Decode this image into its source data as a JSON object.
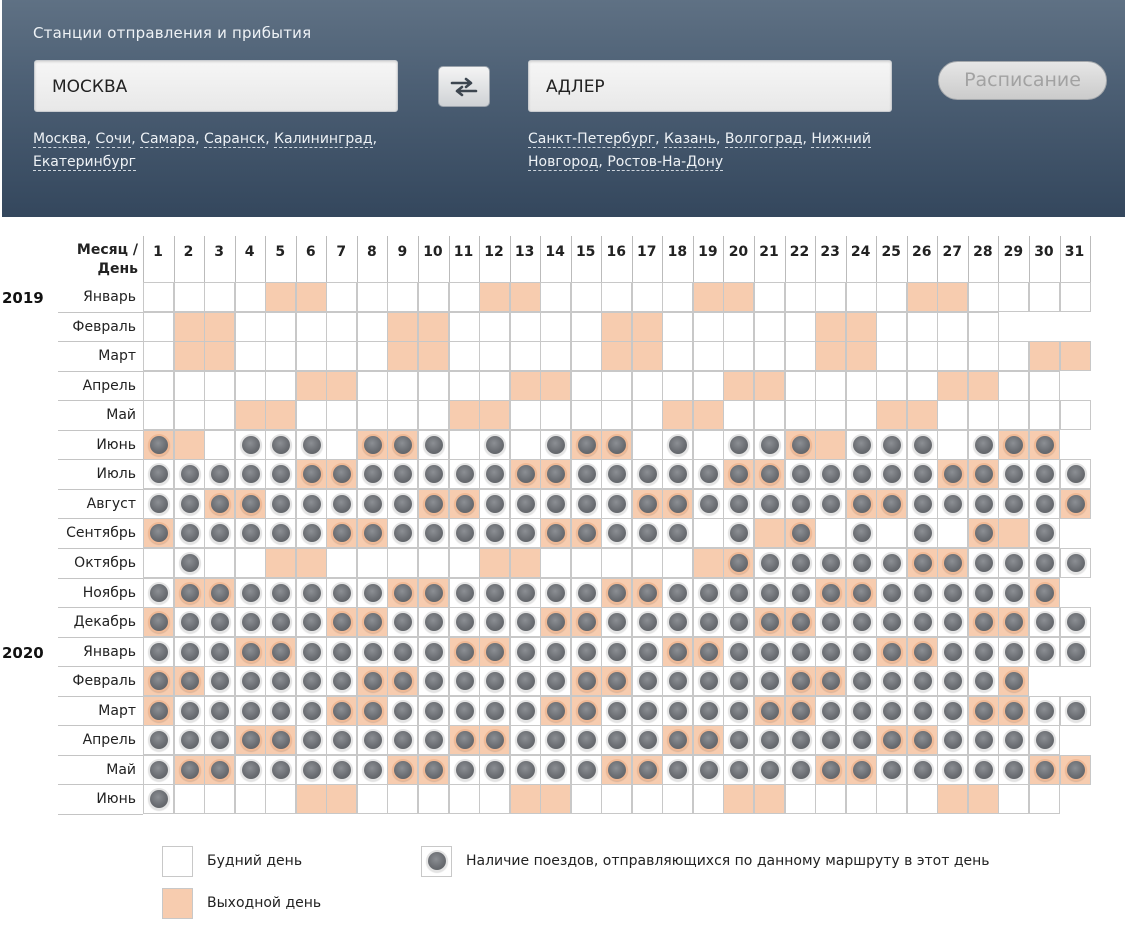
{
  "header": {
    "title": "Станции отправления и прибытия",
    "from_station": "МОСКВА",
    "to_station": "АДЛЕР",
    "swap_icon": "swap-arrows-icon",
    "schedule_label": "Расписание",
    "from_links": [
      "Москва",
      "Сочи",
      "Самара",
      "Саранск",
      "Калининград",
      "Екатеринбург"
    ],
    "to_links": [
      "Санкт-Петербург",
      "Казань",
      "Волгоград",
      "Нижний Новгород",
      "Ростов-На-Дону"
    ]
  },
  "calendar": {
    "header_label_1": "Месяц /",
    "header_label_2": "День",
    "days": [
      1,
      2,
      3,
      4,
      5,
      6,
      7,
      8,
      9,
      10,
      11,
      12,
      13,
      14,
      15,
      16,
      17,
      18,
      19,
      20,
      21,
      22,
      23,
      24,
      25,
      26,
      27,
      28,
      29,
      30,
      31
    ],
    "colors": {
      "weekday": "#ffffff",
      "weekend": "#f7ccaf",
      "train_dot": "#6b6e73"
    },
    "months": [
      {
        "year": "2019",
        "name": "Январь",
        "days": 31,
        "weekends": [
          5,
          6,
          12,
          13,
          19,
          20,
          26,
          27
        ],
        "trains": []
      },
      {
        "year": "",
        "name": "Февраль",
        "days": 28,
        "weekends": [
          2,
          3,
          9,
          10,
          16,
          17,
          23,
          24
        ],
        "trains": []
      },
      {
        "year": "",
        "name": "Март",
        "days": 31,
        "weekends": [
          2,
          3,
          9,
          10,
          16,
          17,
          23,
          24,
          30,
          31
        ],
        "trains": []
      },
      {
        "year": "",
        "name": "Апрель",
        "days": 30,
        "weekends": [
          6,
          7,
          13,
          14,
          20,
          21,
          27,
          28
        ],
        "trains": []
      },
      {
        "year": "",
        "name": "Май",
        "days": 31,
        "weekends": [
          4,
          5,
          11,
          12,
          18,
          19,
          25,
          26
        ],
        "trains": []
      },
      {
        "year": "",
        "name": "Июнь",
        "days": 30,
        "weekends": [
          1,
          2,
          8,
          9,
          15,
          16,
          22,
          23,
          29,
          30
        ],
        "trains": [
          1,
          4,
          5,
          6,
          8,
          9,
          10,
          12,
          14,
          15,
          16,
          18,
          20,
          21,
          22,
          24,
          25,
          26,
          28,
          29,
          30
        ]
      },
      {
        "year": "",
        "name": "Июль",
        "days": 31,
        "weekends": [
          6,
          7,
          13,
          14,
          20,
          21,
          27,
          28
        ],
        "trains": [
          1,
          2,
          3,
          4,
          5,
          6,
          7,
          8,
          9,
          10,
          11,
          12,
          13,
          14,
          15,
          16,
          17,
          18,
          19,
          20,
          21,
          22,
          23,
          24,
          25,
          26,
          27,
          28,
          29,
          30,
          31
        ]
      },
      {
        "year": "",
        "name": "Август",
        "days": 31,
        "weekends": [
          3,
          4,
          10,
          11,
          17,
          18,
          24,
          25,
          31
        ],
        "trains": [
          1,
          2,
          3,
          4,
          5,
          6,
          7,
          8,
          9,
          10,
          11,
          12,
          13,
          14,
          15,
          16,
          17,
          18,
          19,
          20,
          21,
          22,
          23,
          24,
          25,
          26,
          27,
          28,
          29,
          30,
          31
        ]
      },
      {
        "year": "",
        "name": "Сентябрь",
        "days": 30,
        "weekends": [
          1,
          7,
          8,
          14,
          15,
          21,
          22,
          28,
          29
        ],
        "trains": [
          1,
          2,
          3,
          4,
          5,
          6,
          7,
          8,
          9,
          10,
          11,
          12,
          13,
          14,
          15,
          16,
          17,
          18,
          20,
          22,
          24,
          26,
          28,
          30
        ]
      },
      {
        "year": "",
        "name": "Октябрь",
        "days": 31,
        "weekends": [
          5,
          6,
          12,
          13,
          19,
          20,
          26,
          27
        ],
        "trains": [
          2,
          20,
          21,
          22,
          23,
          24,
          25,
          26,
          27,
          28,
          29,
          30,
          31
        ]
      },
      {
        "year": "",
        "name": "Ноябрь",
        "days": 30,
        "weekends": [
          2,
          3,
          9,
          10,
          16,
          17,
          23,
          24,
          30
        ],
        "trains": [
          1,
          2,
          3,
          4,
          5,
          6,
          7,
          8,
          9,
          10,
          11,
          12,
          13,
          14,
          15,
          16,
          17,
          18,
          19,
          20,
          21,
          22,
          23,
          24,
          25,
          26,
          27,
          28,
          29,
          30
        ]
      },
      {
        "year": "",
        "name": "Декабрь",
        "days": 31,
        "weekends": [
          1,
          7,
          8,
          14,
          15,
          21,
          22,
          28,
          29
        ],
        "trains": [
          1,
          2,
          3,
          4,
          5,
          6,
          7,
          8,
          9,
          10,
          11,
          12,
          13,
          14,
          15,
          16,
          17,
          18,
          19,
          20,
          21,
          22,
          23,
          24,
          25,
          26,
          27,
          28,
          29,
          30,
          31
        ]
      },
      {
        "year": "2020",
        "name": "Январь",
        "days": 31,
        "weekends": [
          4,
          5,
          11,
          12,
          18,
          19,
          25,
          26
        ],
        "trains": [
          1,
          2,
          3,
          4,
          5,
          6,
          7,
          8,
          9,
          10,
          11,
          12,
          13,
          14,
          15,
          16,
          17,
          18,
          19,
          20,
          21,
          22,
          23,
          24,
          25,
          26,
          27,
          28,
          29,
          30,
          31
        ]
      },
      {
        "year": "",
        "name": "Февраль",
        "days": 29,
        "weekends": [
          1,
          2,
          8,
          9,
          15,
          16,
          22,
          23,
          29
        ],
        "trains": [
          1,
          2,
          3,
          4,
          5,
          6,
          7,
          8,
          9,
          10,
          11,
          12,
          13,
          14,
          15,
          16,
          17,
          18,
          19,
          20,
          21,
          22,
          23,
          24,
          25,
          26,
          27,
          28,
          29
        ]
      },
      {
        "year": "",
        "name": "Март",
        "days": 31,
        "weekends": [
          1,
          7,
          8,
          14,
          15,
          21,
          22,
          28,
          29
        ],
        "trains": [
          1,
          2,
          3,
          4,
          5,
          6,
          7,
          8,
          9,
          10,
          11,
          12,
          13,
          14,
          15,
          16,
          17,
          18,
          19,
          20,
          21,
          22,
          23,
          24,
          25,
          26,
          27,
          28,
          29,
          30,
          31
        ]
      },
      {
        "year": "",
        "name": "Апрель",
        "days": 30,
        "weekends": [
          4,
          5,
          11,
          12,
          18,
          19,
          25,
          26
        ],
        "trains": [
          1,
          2,
          3,
          4,
          5,
          6,
          7,
          8,
          9,
          10,
          11,
          12,
          13,
          14,
          15,
          16,
          17,
          18,
          19,
          20,
          21,
          22,
          23,
          24,
          25,
          26,
          27,
          28,
          29,
          30
        ]
      },
      {
        "year": "",
        "name": "Май",
        "days": 31,
        "weekends": [
          2,
          3,
          9,
          10,
          16,
          17,
          23,
          24,
          30,
          31
        ],
        "trains": [
          1,
          2,
          3,
          4,
          5,
          6,
          7,
          8,
          9,
          10,
          11,
          12,
          13,
          14,
          15,
          16,
          17,
          18,
          19,
          20,
          21,
          22,
          23,
          24,
          25,
          26,
          27,
          28,
          29,
          30,
          31
        ]
      },
      {
        "year": "",
        "name": "Июнь",
        "days": 30,
        "weekends": [
          6,
          7,
          13,
          14,
          20,
          21,
          27,
          28
        ],
        "trains": [
          1
        ]
      }
    ]
  },
  "legend": {
    "weekday_label": "Будний день",
    "weekend_label": "Выходной день",
    "trains_label": "Наличие поездов, отправляющихся по данному маршруту в этот день",
    "train_icon": "train-availability-dot-icon"
  }
}
